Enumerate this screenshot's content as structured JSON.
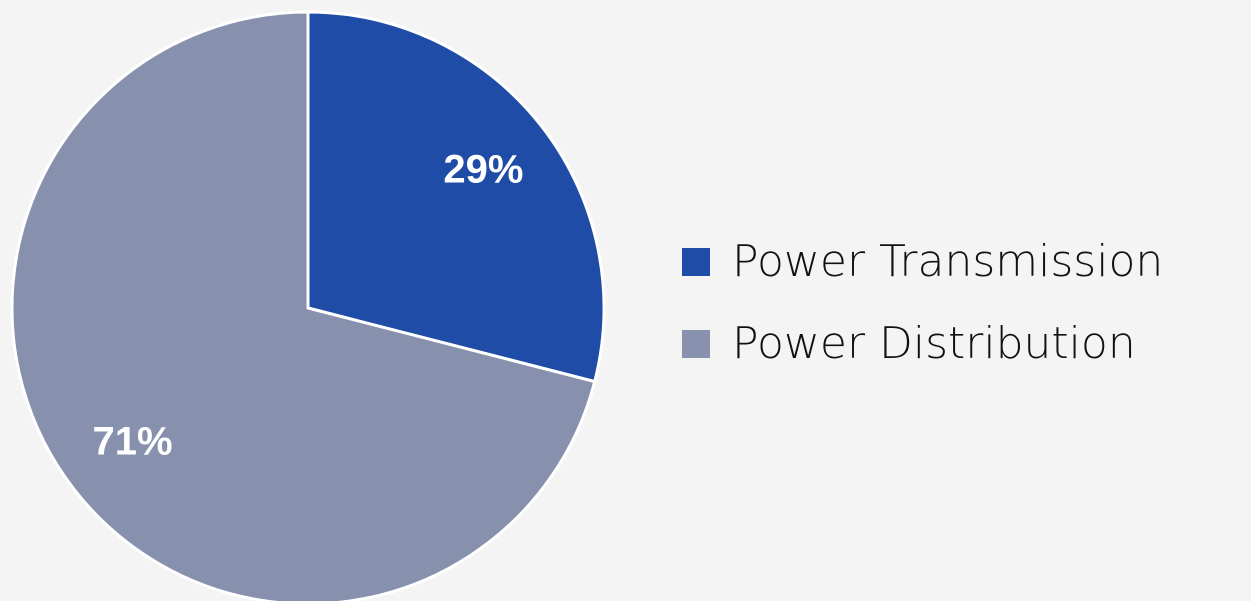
{
  "chart_data": {
    "type": "pie",
    "categories": [
      "Power Transmission",
      "Power Distribution"
    ],
    "values": [
      29,
      71
    ],
    "value_labels": [
      "29%",
      "71%"
    ],
    "colors": [
      "#1f4ca6",
      "#8791ad"
    ],
    "legend": "right"
  }
}
